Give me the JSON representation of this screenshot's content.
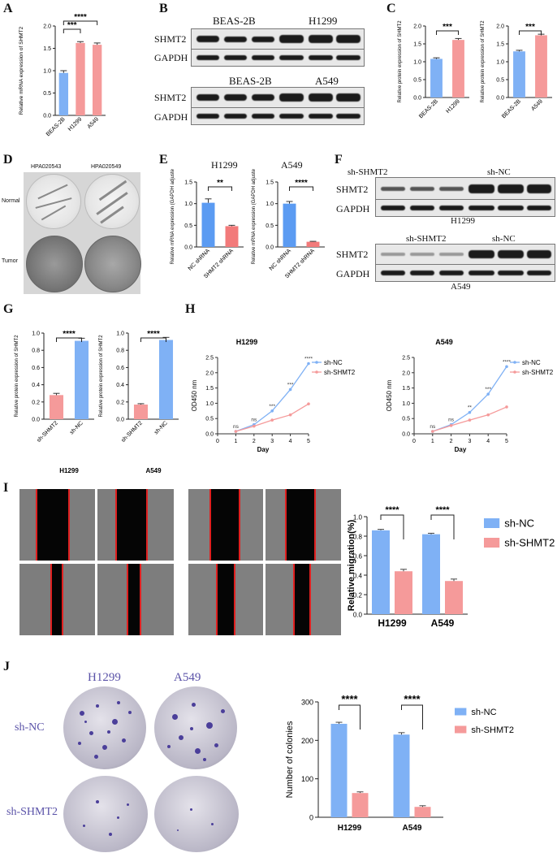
{
  "panels": {
    "A": {
      "label": "A",
      "chart_data": {
        "type": "bar",
        "categories": [
          "BEAS-2B",
          "H1299",
          "A549"
        ],
        "values": [
          0.95,
          1.62,
          1.58
        ],
        "errors": [
          0.05,
          0.03,
          0.04
        ],
        "colors": [
          "#7fb1f5",
          "#f59a9a",
          "#f59a9a"
        ],
        "ylabel": "Relative mRNA expression of SHMT2",
        "ylim": [
          0,
          2.0
        ],
        "yticks": [
          "0.0",
          "0.5",
          "1.0",
          "1.5",
          "2.0"
        ],
        "sig": [
          {
            "from": 0,
            "to": 1,
            "text": "***"
          },
          {
            "from": 0,
            "to": 2,
            "text": "****"
          }
        ]
      }
    },
    "B": {
      "label": "B",
      "blot1": {
        "groups": [
          "BEAS-2B",
          "H1299"
        ],
        "rows": [
          "SHMT2",
          "GAPDH"
        ]
      },
      "blot2": {
        "groups": [
          "BEAS-2B",
          "A549"
        ],
        "rows": [
          "SHMT2",
          "GAPDH"
        ]
      }
    },
    "C": {
      "label": "C",
      "chart_data": [
        {
          "type": "bar",
          "categories": [
            "BEAS-2B",
            "H1299"
          ],
          "values": [
            1.08,
            1.61
          ],
          "errors": [
            0.03,
            0.04
          ],
          "colors": [
            "#7fb1f5",
            "#f59a9a"
          ],
          "ylabel": "Relative protein expression of SHMT2",
          "ylim": [
            0,
            2.0
          ],
          "yticks": [
            "0.0",
            "0.5",
            "1.0",
            "1.5",
            "2.0"
          ],
          "sig": [
            {
              "from": 0,
              "to": 1,
              "text": "***"
            }
          ]
        },
        {
          "type": "bar",
          "categories": [
            "BEAS-2B",
            "A549"
          ],
          "values": [
            1.29,
            1.74
          ],
          "errors": [
            0.03,
            0.03
          ],
          "colors": [
            "#7fb1f5",
            "#f59a9a"
          ],
          "ylabel": "Relative protein expression of SHMT2",
          "ylim": [
            0,
            2.0
          ],
          "yticks": [
            "0.0",
            "0.5",
            "1.0",
            "1.5",
            "2.0"
          ],
          "sig": [
            {
              "from": 0,
              "to": 1,
              "text": "***"
            }
          ]
        }
      ]
    },
    "D": {
      "label": "D",
      "cols": [
        "HPA020543",
        "HPA020549"
      ],
      "rows": [
        "Normal",
        "Tumor"
      ]
    },
    "E": {
      "label": "E",
      "titles": [
        "H1299",
        "A549"
      ],
      "chart_data": [
        {
          "type": "bar",
          "categories": [
            "NC shRNA",
            "SHMT2 shRNA"
          ],
          "values": [
            1.02,
            0.48
          ],
          "errors": [
            0.09,
            0.02
          ],
          "colors": [
            "#5b9bf2",
            "#f27a7a"
          ],
          "ylabel": "Relative mRNA expression (GAPDH adjusted)",
          "ylim": [
            0,
            1.5
          ],
          "yticks": [
            "0.0",
            "0.5",
            "1.0",
            "1.5"
          ],
          "sig": [
            {
              "from": 0,
              "to": 1,
              "text": "**"
            }
          ]
        },
        {
          "type": "bar",
          "categories": [
            "NC shRNA",
            "SHMT2 shRNA"
          ],
          "values": [
            1.0,
            0.12
          ],
          "errors": [
            0.05,
            0.01
          ],
          "colors": [
            "#5b9bf2",
            "#f27a7a"
          ],
          "ylabel": "Relative mRNA expression (GAPDH adjusted)",
          "ylim": [
            0,
            1.5
          ],
          "yticks": [
            "0.0",
            "0.5",
            "1.0",
            "1.5"
          ],
          "sig": [
            {
              "from": 0,
              "to": 1,
              "text": "****"
            }
          ]
        }
      ]
    },
    "F": {
      "label": "F",
      "blot1": {
        "groups": [
          "sh-SHMT2",
          "sh-NC"
        ],
        "rows": [
          "SHMT2",
          "GAPDH"
        ],
        "cell": "H1299"
      },
      "blot2": {
        "groups": [
          "sh-SHMT2",
          "sh-NC"
        ],
        "rows": [
          "SHMT2",
          "GAPDH"
        ],
        "cell": "A549"
      }
    },
    "G": {
      "label": "G",
      "chart_data": [
        {
          "type": "bar",
          "categories": [
            "sh-SHMT2",
            "sh-NC"
          ],
          "values": [
            0.28,
            0.91
          ],
          "errors": [
            0.02,
            0.03
          ],
          "colors": [
            "#f59a9a",
            "#7fb1f5"
          ],
          "ylabel": "Relative protein expression of SHMT2",
          "xlabel": "H1299",
          "ylim": [
            0,
            1.0
          ],
          "yticks": [
            "0.0",
            "0.2",
            "0.4",
            "0.6",
            "0.8",
            "1.0"
          ],
          "sig": [
            {
              "from": 0,
              "to": 1,
              "text": "****"
            }
          ]
        },
        {
          "type": "bar",
          "categories": [
            "sh-SHMT2",
            "sh-NC"
          ],
          "values": [
            0.17,
            0.92
          ],
          "errors": [
            0.01,
            0.03
          ],
          "colors": [
            "#f59a9a",
            "#7fb1f5"
          ],
          "ylabel": "Relative protein expression of SHMT2",
          "xlabel": "A549",
          "ylim": [
            0,
            1.0
          ],
          "yticks": [
            "0.0",
            "0.2",
            "0.4",
            "0.6",
            "0.8",
            "1.0"
          ],
          "sig": [
            {
              "from": 0,
              "to": 1,
              "text": "****"
            }
          ]
        }
      ]
    },
    "H": {
      "label": "H",
      "chart_data": [
        {
          "type": "line",
          "title": "H1299",
          "xlabel": "Day",
          "ylabel": "OD450 nm",
          "x": [
            1,
            2,
            3,
            4,
            5
          ],
          "xlim": [
            0,
            5
          ],
          "ylim": [
            0,
            2.5
          ],
          "yticks": [
            "0.0",
            "0.5",
            "1.0",
            "1.5",
            "2.0",
            "2.5"
          ],
          "xticks": [
            "0",
            "1",
            "2",
            "3",
            "4",
            "5"
          ],
          "series": [
            {
              "name": "sh-NC",
              "values": [
                0.08,
                0.3,
                0.75,
                1.45,
                2.3
              ],
              "color": "#7fb1f5"
            },
            {
              "name": "sh-SHMT2",
              "values": [
                0.08,
                0.25,
                0.45,
                0.62,
                0.98
              ],
              "color": "#f59a9a"
            }
          ],
          "sig": [
            "ns",
            "ns",
            "***",
            "***",
            "****"
          ]
        },
        {
          "type": "line",
          "title": "A549",
          "xlabel": "Day",
          "ylabel": "OD450 nm",
          "x": [
            1,
            2,
            3,
            4,
            5
          ],
          "xlim": [
            0,
            5
          ],
          "ylim": [
            0,
            2.5
          ],
          "yticks": [
            "0.0",
            "0.5",
            "1.0",
            "1.5",
            "2.0",
            "2.5"
          ],
          "xticks": [
            "0",
            "1",
            "2",
            "3",
            "4",
            "5"
          ],
          "series": [
            {
              "name": "sh-NC",
              "values": [
                0.08,
                0.3,
                0.7,
                1.3,
                2.2
              ],
              "color": "#7fb1f5"
            },
            {
              "name": "sh-SHMT2",
              "values": [
                0.08,
                0.27,
                0.45,
                0.62,
                0.88
              ],
              "color": "#f59a9a"
            }
          ],
          "sig": [
            "ns",
            "ns",
            "**",
            "***",
            "****"
          ]
        }
      ]
    },
    "I": {
      "label": "I",
      "chart_data": {
        "type": "bar",
        "categories": [
          "H1299",
          "A549"
        ],
        "series": [
          {
            "name": "sh-NC",
            "values": [
              0.86,
              0.82
            ],
            "errors": [
              0.01,
              0.01
            ],
            "color": "#7fb1f5"
          },
          {
            "name": "sh-SHMT2",
            "values": [
              0.44,
              0.34
            ],
            "errors": [
              0.02,
              0.02
            ],
            "color": "#f59a9a"
          }
        ],
        "ylabel": "Relative migration(%)",
        "ylim": [
          0,
          1.0
        ],
        "yticks": [
          "0.0",
          "0.2",
          "0.4",
          "0.6",
          "0.8",
          "1.0"
        ],
        "sig": [
          "****",
          "****"
        ]
      }
    },
    "J": {
      "label": "J",
      "cols": [
        "H1299",
        "A549"
      ],
      "rows": [
        "sh-NC",
        "sh-SHMT2"
      ],
      "chart_data": {
        "type": "bar",
        "categories": [
          "H1299",
          "A549"
        ],
        "series": [
          {
            "name": "sh-NC",
            "values": [
              243,
              215
            ],
            "errors": [
              4,
              5
            ],
            "color": "#7fb1f5"
          },
          {
            "name": "sh-SHMT2",
            "values": [
              63,
              27
            ],
            "errors": [
              3,
              3
            ],
            "color": "#f59a9a"
          }
        ],
        "ylabel": "Number of colonies",
        "ylim": [
          0,
          300
        ],
        "yticks": [
          "0",
          "100",
          "200",
          "300"
        ],
        "sig": [
          "****",
          "****"
        ]
      }
    }
  }
}
